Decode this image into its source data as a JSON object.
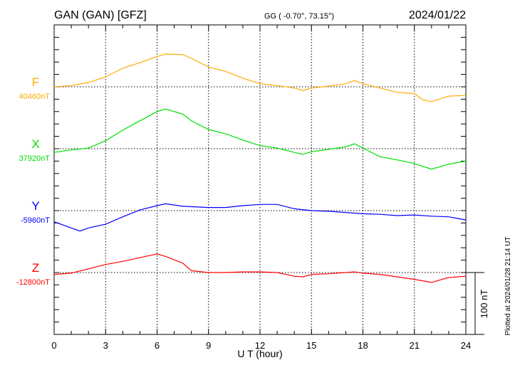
{
  "header": {
    "station": "GAN (GAN)  [GFZ]",
    "coords": "GG ( -0.70°,  73.15°)",
    "date": "2024/01/22"
  },
  "footer": {
    "scale_label": "100 nT",
    "plotted": "Plotted at 2024/01/28 21:14 UT"
  },
  "chart_data": {
    "type": "line",
    "xlabel": "U T (hour)",
    "xlim": [
      0,
      24
    ],
    "xticks": [
      "0",
      "3",
      "6",
      "9",
      "12",
      "15",
      "18",
      "21",
      "24"
    ],
    "scale_nT": 100,
    "grid": true,
    "series": [
      {
        "name": "F",
        "baseline_label": "40460nT",
        "color": "#ffaa00",
        "x": [
          0,
          1,
          2,
          3,
          4,
          5,
          6,
          6.5,
          7.5,
          8,
          9,
          10,
          11,
          12,
          13,
          14,
          14.5,
          15,
          16,
          17,
          17.5,
          18,
          19,
          20,
          21,
          21.5,
          22,
          23,
          24
        ],
        "y": [
          0,
          2,
          7,
          16,
          30,
          39,
          49,
          53,
          52,
          46,
          32,
          25,
          14,
          5,
          2,
          -2,
          -6,
          -2,
          1,
          5,
          10,
          5,
          -2,
          -9,
          -11,
          -21,
          -24,
          -15,
          -14
        ]
      },
      {
        "name": "X",
        "baseline_label": "37920nT",
        "color": "#00dd00",
        "x": [
          0,
          1,
          2,
          3,
          4,
          5,
          6,
          6.5,
          7.5,
          8,
          9,
          10,
          11,
          12,
          13,
          14,
          14.5,
          15,
          16,
          17,
          17.5,
          18,
          19,
          20,
          21,
          22,
          23,
          24
        ],
        "y": [
          -6,
          -2,
          1,
          13,
          30,
          45,
          60,
          64,
          56,
          45,
          31,
          24,
          14,
          5,
          1,
          -6,
          -9,
          -5,
          -1,
          3,
          8,
          1,
          -13,
          -18,
          -24,
          -33,
          -25,
          -20
        ]
      },
      {
        "name": "Y",
        "baseline_label": "-5960nT",
        "color": "#0000ff",
        "x": [
          0,
          1,
          1.5,
          2,
          3,
          4,
          5,
          6,
          6.5,
          7.5,
          9,
          10,
          11,
          12,
          13,
          14,
          15,
          16,
          17,
          18,
          19,
          20,
          21,
          22,
          23,
          24
        ],
        "y": [
          -18,
          -28,
          -33,
          -28,
          -22,
          -10,
          1,
          8,
          11,
          7,
          5,
          5,
          8,
          10,
          10,
          3,
          0,
          -1,
          -3,
          -5,
          -6,
          -8,
          -7,
          -9,
          -10,
          -15
        ]
      },
      {
        "name": "Z",
        "baseline_label": "-12800nT",
        "color": "#ff0000",
        "x": [
          0,
          1,
          2,
          3,
          4,
          5,
          6,
          6.5,
          7.5,
          8,
          9,
          10,
          11,
          12,
          13,
          14,
          14.5,
          15,
          16,
          17,
          17.5,
          18,
          19,
          20,
          21,
          22,
          23,
          24
        ],
        "y": [
          -3,
          -1,
          6,
          13,
          18,
          24,
          30,
          26,
          15,
          3,
          0,
          0,
          1,
          1,
          0,
          -6,
          -7,
          -3,
          -2,
          0,
          1,
          -1,
          -3,
          -7,
          -11,
          -16,
          -8,
          -6
        ]
      }
    ]
  }
}
